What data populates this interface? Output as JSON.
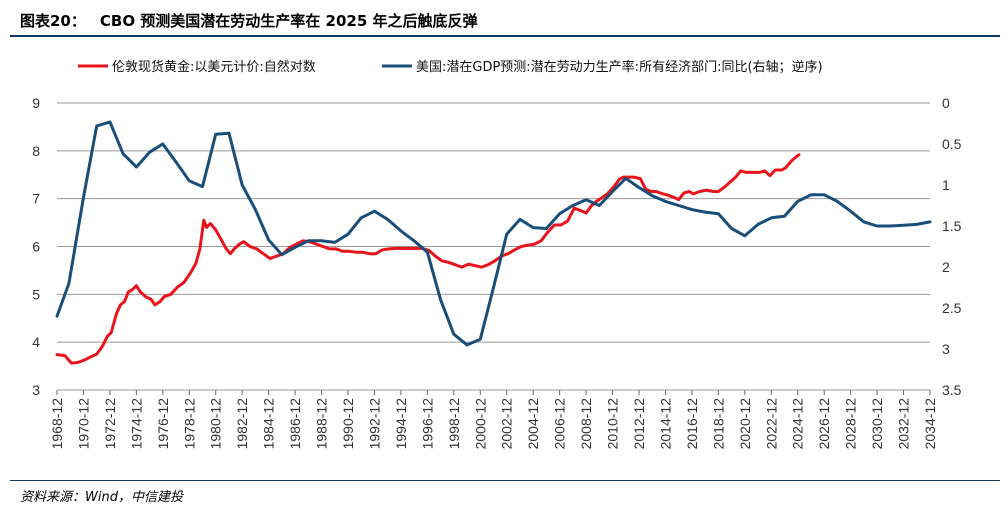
{
  "header": {
    "figure_no": "图表20：",
    "title": "CBO 预测美国潜在劳动生产率在 2025 年之后触底反弹"
  },
  "footer": {
    "source": "资料来源：Wind，中信建投"
  },
  "chart_data": {
    "type": "line",
    "legend": [
      {
        "name": "伦敦现货黄金:以美元计价:自然对数",
        "color": "#e8141b"
      },
      {
        "name": "美国:潜在GDP预测:潜在劳动力生产率:所有经济部门:同比(右轴；逆序)",
        "color": "#1a4e7a"
      }
    ],
    "x_tick_labels": [
      "1968-12",
      "1970-12",
      "1972-12",
      "1974-12",
      "1976-12",
      "1978-12",
      "1980-12",
      "1982-12",
      "1984-12",
      "1986-12",
      "1988-12",
      "1990-12",
      "1992-12",
      "1994-12",
      "1996-12",
      "1998-12",
      "2000-12",
      "2002-12",
      "2004-12",
      "2006-12",
      "2008-12",
      "2010-12",
      "2012-12",
      "2014-12",
      "2016-12",
      "2018-12",
      "2020-12",
      "2022-12",
      "2024-12",
      "2026-12",
      "2028-12",
      "2030-12",
      "2032-12",
      "2034-12"
    ],
    "x_range": [
      1968.9,
      2034.9
    ],
    "y_left": {
      "range": [
        3,
        9
      ],
      "ticks": [
        "9",
        "8",
        "7",
        "6",
        "5",
        "4",
        "3"
      ]
    },
    "y_right": {
      "range": [
        0,
        3.5
      ],
      "inverted": true,
      "ticks": [
        "0",
        "0.5",
        "1",
        "1.5",
        "2",
        "2.5",
        "3",
        "3.5"
      ]
    },
    "grid": "horizontal",
    "legend_position": "top",
    "series": [
      {
        "name": "伦敦现货黄金:以美元计价:自然对数",
        "axis": "left",
        "color": "#e8141b",
        "points": [
          [
            1968.9,
            3.74
          ],
          [
            1969.5,
            3.72
          ],
          [
            1970.0,
            3.56
          ],
          [
            1970.5,
            3.58
          ],
          [
            1971.0,
            3.63
          ],
          [
            1971.5,
            3.7
          ],
          [
            1971.9,
            3.75
          ],
          [
            1972.3,
            3.9
          ],
          [
            1972.7,
            4.12
          ],
          [
            1973.0,
            4.2
          ],
          [
            1973.4,
            4.6
          ],
          [
            1973.7,
            4.78
          ],
          [
            1974.0,
            4.85
          ],
          [
            1974.3,
            5.05
          ],
          [
            1974.6,
            5.1
          ],
          [
            1974.9,
            5.18
          ],
          [
            1975.2,
            5.05
          ],
          [
            1975.6,
            4.95
          ],
          [
            1976.0,
            4.9
          ],
          [
            1976.3,
            4.78
          ],
          [
            1976.7,
            4.85
          ],
          [
            1977.0,
            4.95
          ],
          [
            1977.5,
            5.0
          ],
          [
            1978.0,
            5.15
          ],
          [
            1978.5,
            5.25
          ],
          [
            1979.0,
            5.45
          ],
          [
            1979.4,
            5.65
          ],
          [
            1979.7,
            5.95
          ],
          [
            1980.0,
            6.55
          ],
          [
            1980.2,
            6.4
          ],
          [
            1980.5,
            6.48
          ],
          [
            1980.9,
            6.35
          ],
          [
            1981.3,
            6.15
          ],
          [
            1981.7,
            5.95
          ],
          [
            1982.0,
            5.85
          ],
          [
            1982.3,
            5.95
          ],
          [
            1982.7,
            6.05
          ],
          [
            1983.0,
            6.1
          ],
          [
            1983.5,
            6.0
          ],
          [
            1984.0,
            5.95
          ],
          [
            1984.5,
            5.85
          ],
          [
            1985.0,
            5.75
          ],
          [
            1985.5,
            5.8
          ],
          [
            1986.0,
            5.85
          ],
          [
            1986.5,
            5.98
          ],
          [
            1987.0,
            6.05
          ],
          [
            1987.5,
            6.12
          ],
          [
            1988.0,
            6.1
          ],
          [
            1988.5,
            6.05
          ],
          [
            1989.0,
            6.0
          ],
          [
            1989.5,
            5.95
          ],
          [
            1990.0,
            5.95
          ],
          [
            1990.5,
            5.9
          ],
          [
            1991.0,
            5.9
          ],
          [
            1991.5,
            5.88
          ],
          [
            1992.0,
            5.88
          ],
          [
            1992.5,
            5.85
          ],
          [
            1993.0,
            5.85
          ],
          [
            1993.5,
            5.93
          ],
          [
            1994.0,
            5.95
          ],
          [
            1994.5,
            5.96
          ],
          [
            1995.0,
            5.96
          ],
          [
            1995.5,
            5.96
          ],
          [
            1996.0,
            5.96
          ],
          [
            1996.5,
            5.96
          ],
          [
            1997.0,
            5.92
          ],
          [
            1997.5,
            5.8
          ],
          [
            1998.0,
            5.7
          ],
          [
            1998.5,
            5.67
          ],
          [
            1999.0,
            5.62
          ],
          [
            1999.5,
            5.57
          ],
          [
            2000.0,
            5.63
          ],
          [
            2000.5,
            5.6
          ],
          [
            2001.0,
            5.57
          ],
          [
            2001.5,
            5.62
          ],
          [
            2002.0,
            5.7
          ],
          [
            2002.5,
            5.8
          ],
          [
            2003.0,
            5.85
          ],
          [
            2003.5,
            5.93
          ],
          [
            2004.0,
            6.0
          ],
          [
            2004.5,
            6.03
          ],
          [
            2005.0,
            6.05
          ],
          [
            2005.5,
            6.12
          ],
          [
            2006.0,
            6.3
          ],
          [
            2006.5,
            6.45
          ],
          [
            2007.0,
            6.45
          ],
          [
            2007.5,
            6.53
          ],
          [
            2008.0,
            6.8
          ],
          [
            2008.5,
            6.75
          ],
          [
            2008.9,
            6.7
          ],
          [
            2009.3,
            6.85
          ],
          [
            2009.7,
            6.95
          ],
          [
            2010.0,
            7.0
          ],
          [
            2010.5,
            7.1
          ],
          [
            2011.0,
            7.25
          ],
          [
            2011.4,
            7.4
          ],
          [
            2011.7,
            7.45
          ],
          [
            2012.0,
            7.45
          ],
          [
            2012.5,
            7.45
          ],
          [
            2013.0,
            7.42
          ],
          [
            2013.4,
            7.2
          ],
          [
            2013.8,
            7.15
          ],
          [
            2014.2,
            7.15
          ],
          [
            2014.7,
            7.1
          ],
          [
            2015.0,
            7.08
          ],
          [
            2015.5,
            7.03
          ],
          [
            2015.9,
            6.98
          ],
          [
            2016.3,
            7.12
          ],
          [
            2016.7,
            7.15
          ],
          [
            2017.0,
            7.1
          ],
          [
            2017.5,
            7.15
          ],
          [
            2018.0,
            7.18
          ],
          [
            2018.5,
            7.15
          ],
          [
            2018.9,
            7.15
          ],
          [
            2019.4,
            7.25
          ],
          [
            2019.8,
            7.35
          ],
          [
            2020.2,
            7.45
          ],
          [
            2020.6,
            7.58
          ],
          [
            2021.0,
            7.55
          ],
          [
            2021.5,
            7.55
          ],
          [
            2022.0,
            7.55
          ],
          [
            2022.4,
            7.58
          ],
          [
            2022.8,
            7.48
          ],
          [
            2023.2,
            7.6
          ],
          [
            2023.7,
            7.6
          ],
          [
            2024.0,
            7.65
          ],
          [
            2024.4,
            7.78
          ],
          [
            2024.8,
            7.88
          ],
          [
            2025.0,
            7.92
          ]
        ]
      },
      {
        "name": "美国:潜在GDP预测:潜在劳动力生产率:所有经济部门:同比(右轴；逆序)",
        "axis": "right",
        "color": "#1a4e7a",
        "points": [
          [
            1968.9,
            2.6
          ],
          [
            1969.8,
            2.2
          ],
          [
            1970.9,
            1.15
          ],
          [
            1971.9,
            0.28
          ],
          [
            1972.9,
            0.23
          ],
          [
            1973.9,
            0.62
          ],
          [
            1974.9,
            0.78
          ],
          [
            1975.9,
            0.6
          ],
          [
            1976.9,
            0.5
          ],
          [
            1977.9,
            0.72
          ],
          [
            1978.9,
            0.95
          ],
          [
            1979.9,
            1.02
          ],
          [
            1980.9,
            0.38
          ],
          [
            1981.9,
            0.37
          ],
          [
            1982.9,
            1.0
          ],
          [
            1983.9,
            1.3
          ],
          [
            1984.9,
            1.67
          ],
          [
            1985.9,
            1.85
          ],
          [
            1986.9,
            1.76
          ],
          [
            1987.9,
            1.68
          ],
          [
            1988.9,
            1.68
          ],
          [
            1989.9,
            1.7
          ],
          [
            1990.9,
            1.6
          ],
          [
            1991.9,
            1.4
          ],
          [
            1992.9,
            1.32
          ],
          [
            1993.9,
            1.42
          ],
          [
            1994.9,
            1.56
          ],
          [
            1995.9,
            1.68
          ],
          [
            1996.9,
            1.82
          ],
          [
            1997.9,
            2.4
          ],
          [
            1998.9,
            2.82
          ],
          [
            1999.9,
            2.95
          ],
          [
            2000.9,
            2.88
          ],
          [
            2001.9,
            2.25
          ],
          [
            2002.9,
            1.6
          ],
          [
            2003.9,
            1.42
          ],
          [
            2004.9,
            1.52
          ],
          [
            2005.9,
            1.53
          ],
          [
            2006.9,
            1.35
          ],
          [
            2007.9,
            1.25
          ],
          [
            2008.9,
            1.18
          ],
          [
            2009.9,
            1.25
          ],
          [
            2010.9,
            1.08
          ],
          [
            2011.9,
            0.92
          ],
          [
            2012.9,
            1.03
          ],
          [
            2013.9,
            1.13
          ],
          [
            2014.9,
            1.2
          ],
          [
            2015.9,
            1.25
          ],
          [
            2016.9,
            1.3
          ],
          [
            2017.9,
            1.33
          ],
          [
            2018.9,
            1.35
          ],
          [
            2019.9,
            1.53
          ],
          [
            2020.9,
            1.62
          ],
          [
            2021.9,
            1.48
          ],
          [
            2022.9,
            1.4
          ],
          [
            2023.9,
            1.38
          ],
          [
            2024.9,
            1.2
          ],
          [
            2025.9,
            1.12
          ],
          [
            2026.9,
            1.12
          ],
          [
            2027.9,
            1.2
          ],
          [
            2028.9,
            1.32
          ],
          [
            2029.9,
            1.45
          ],
          [
            2030.9,
            1.5
          ],
          [
            2031.9,
            1.5
          ],
          [
            2032.9,
            1.49
          ],
          [
            2033.9,
            1.48
          ],
          [
            2034.9,
            1.45
          ]
        ]
      }
    ]
  }
}
